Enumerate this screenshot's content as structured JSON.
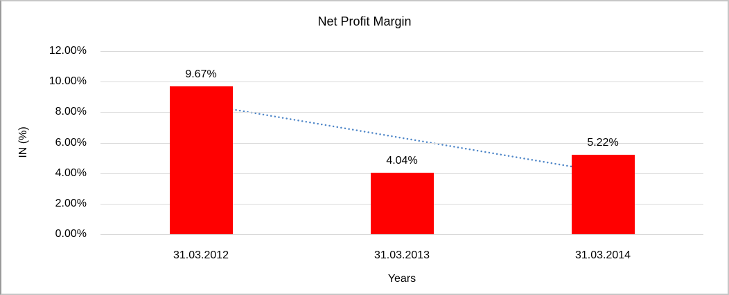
{
  "title": "Net Profit Margin",
  "chart_data": {
    "type": "bar",
    "title": "Net Profit Margin",
    "categories": [
      "31.03.2012",
      "31.03.2013",
      "31.03.2014"
    ],
    "values": [
      9.67,
      4.04,
      5.22
    ],
    "data_labels": [
      "9.67%",
      "4.04%",
      "5.22%"
    ],
    "xlabel": "Years",
    "ylabel": "IN (%)",
    "ylim": [
      0,
      12
    ],
    "y_tick_step": 2,
    "y_tick_labels": [
      "0.00%",
      "2.00%",
      "4.00%",
      "6.00%",
      "8.00%",
      "10.00%",
      "12.00%"
    ],
    "grid": true,
    "legend": "none",
    "bar_color": "#ff0000",
    "trendline": {
      "type": "linear",
      "style": "dotted",
      "start_value": 8.53,
      "end_value": 4.09,
      "color": "#4e86c8"
    }
  },
  "colors": {
    "bar": "#ff0000",
    "trendline": "#4e86c8",
    "gridline": "#d9d9d9",
    "text": "#000000",
    "frame_border": "#c6c6c6",
    "background": "#ffffff"
  }
}
